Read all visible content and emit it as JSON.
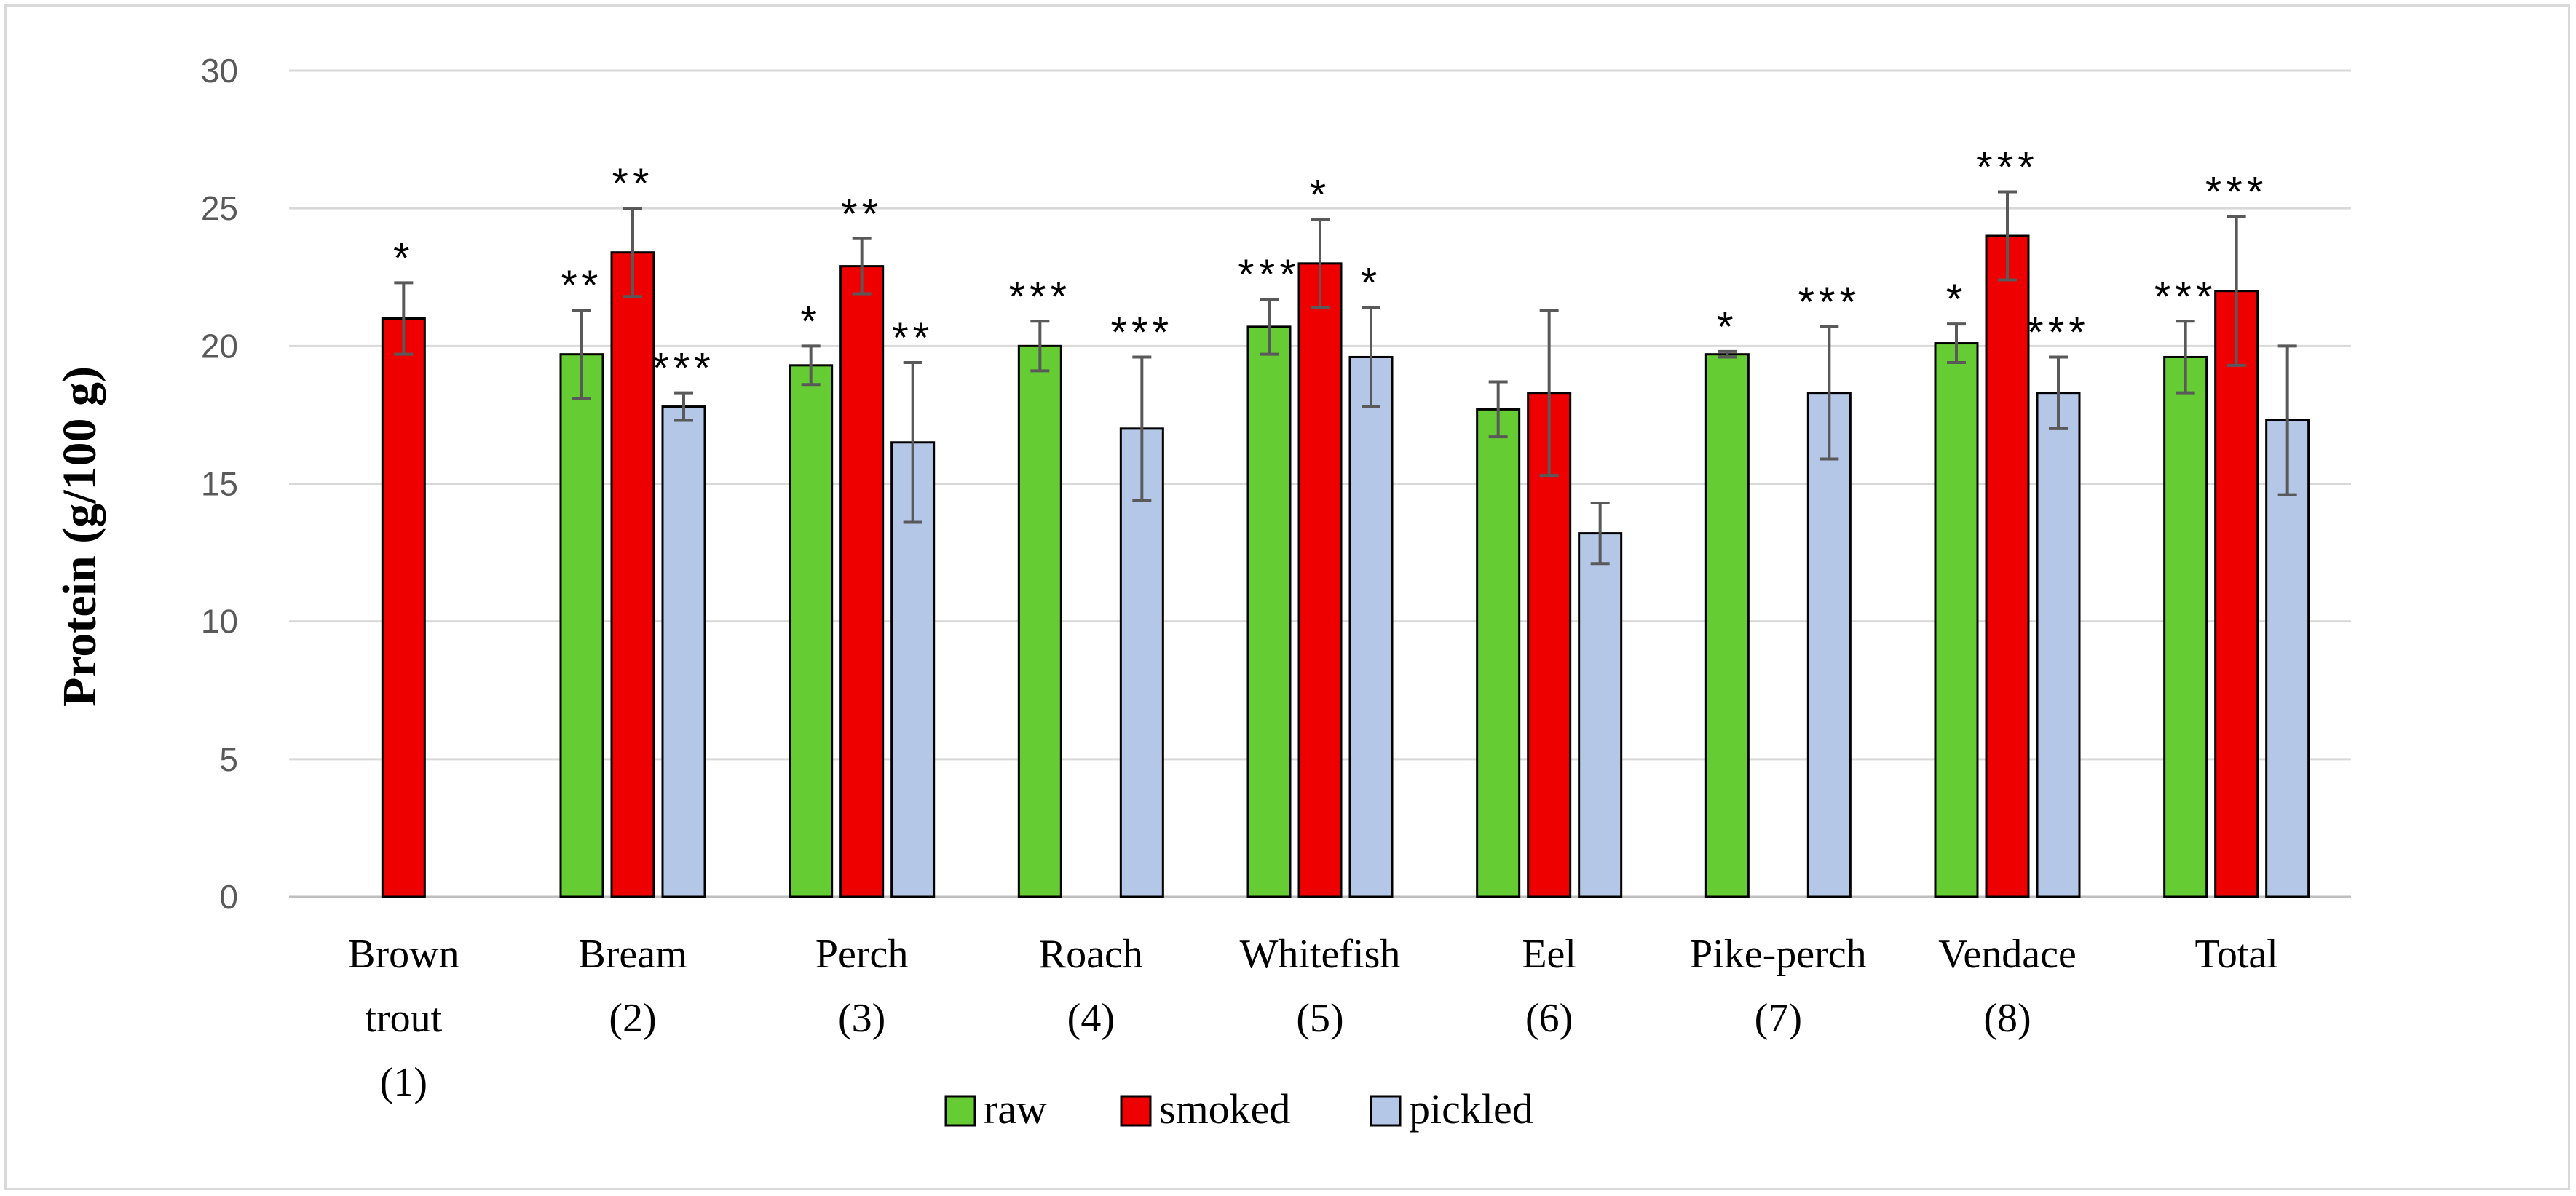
{
  "chart_data": {
    "type": "bar",
    "title": "",
    "xlabel": "",
    "ylabel": "Protein (g/100 g)",
    "ylim": [
      0,
      30
    ],
    "yticks": [
      "0",
      "5",
      "10",
      "15",
      "20",
      "25",
      "30"
    ],
    "grid": true,
    "legend_position": "bottom",
    "categories": [
      {
        "lines": [
          "Brown",
          "trout",
          "(1)"
        ]
      },
      {
        "lines": [
          "Bream",
          "(2)"
        ]
      },
      {
        "lines": [
          "Perch",
          "(3)"
        ]
      },
      {
        "lines": [
          "Roach",
          "(4)"
        ]
      },
      {
        "lines": [
          "Whitefish",
          "(5)"
        ]
      },
      {
        "lines": [
          "Eel",
          "(6)"
        ]
      },
      {
        "lines": [
          "Pike-perch",
          "(7)"
        ]
      },
      {
        "lines": [
          "Vendace",
          "(8)"
        ]
      },
      {
        "lines": [
          "Total"
        ]
      }
    ],
    "series": [
      {
        "name": "raw",
        "color": "#66cc33",
        "values": [
          null,
          19.7,
          19.3,
          20.0,
          20.7,
          17.7,
          19.7,
          20.1,
          19.6
        ],
        "errors": [
          null,
          1.6,
          0.7,
          0.9,
          1.0,
          1.0,
          0.1,
          0.7,
          1.3
        ],
        "significance": [
          null,
          "**",
          "*",
          "***",
          "***",
          null,
          "*",
          "*",
          "***"
        ]
      },
      {
        "name": "smoked",
        "color": "#ee0000",
        "values": [
          21.0,
          23.4,
          22.9,
          null,
          23.0,
          18.3,
          null,
          24.0,
          22.0
        ],
        "errors": [
          1.3,
          1.6,
          1.0,
          null,
          1.6,
          3.0,
          null,
          1.6,
          2.7
        ],
        "significance": [
          "*",
          "**",
          "**",
          null,
          "*",
          null,
          null,
          "***",
          "***"
        ]
      },
      {
        "name": "pickled",
        "color": "#b4c7e7",
        "values": [
          null,
          17.8,
          16.5,
          17.0,
          19.6,
          13.2,
          18.3,
          18.3,
          17.3
        ],
        "errors": [
          null,
          0.5,
          2.9,
          2.6,
          1.8,
          1.1,
          2.4,
          1.3,
          2.7
        ],
        "significance": [
          null,
          "***",
          "**",
          "***",
          "*",
          null,
          "***",
          "***",
          null
        ]
      }
    ]
  }
}
